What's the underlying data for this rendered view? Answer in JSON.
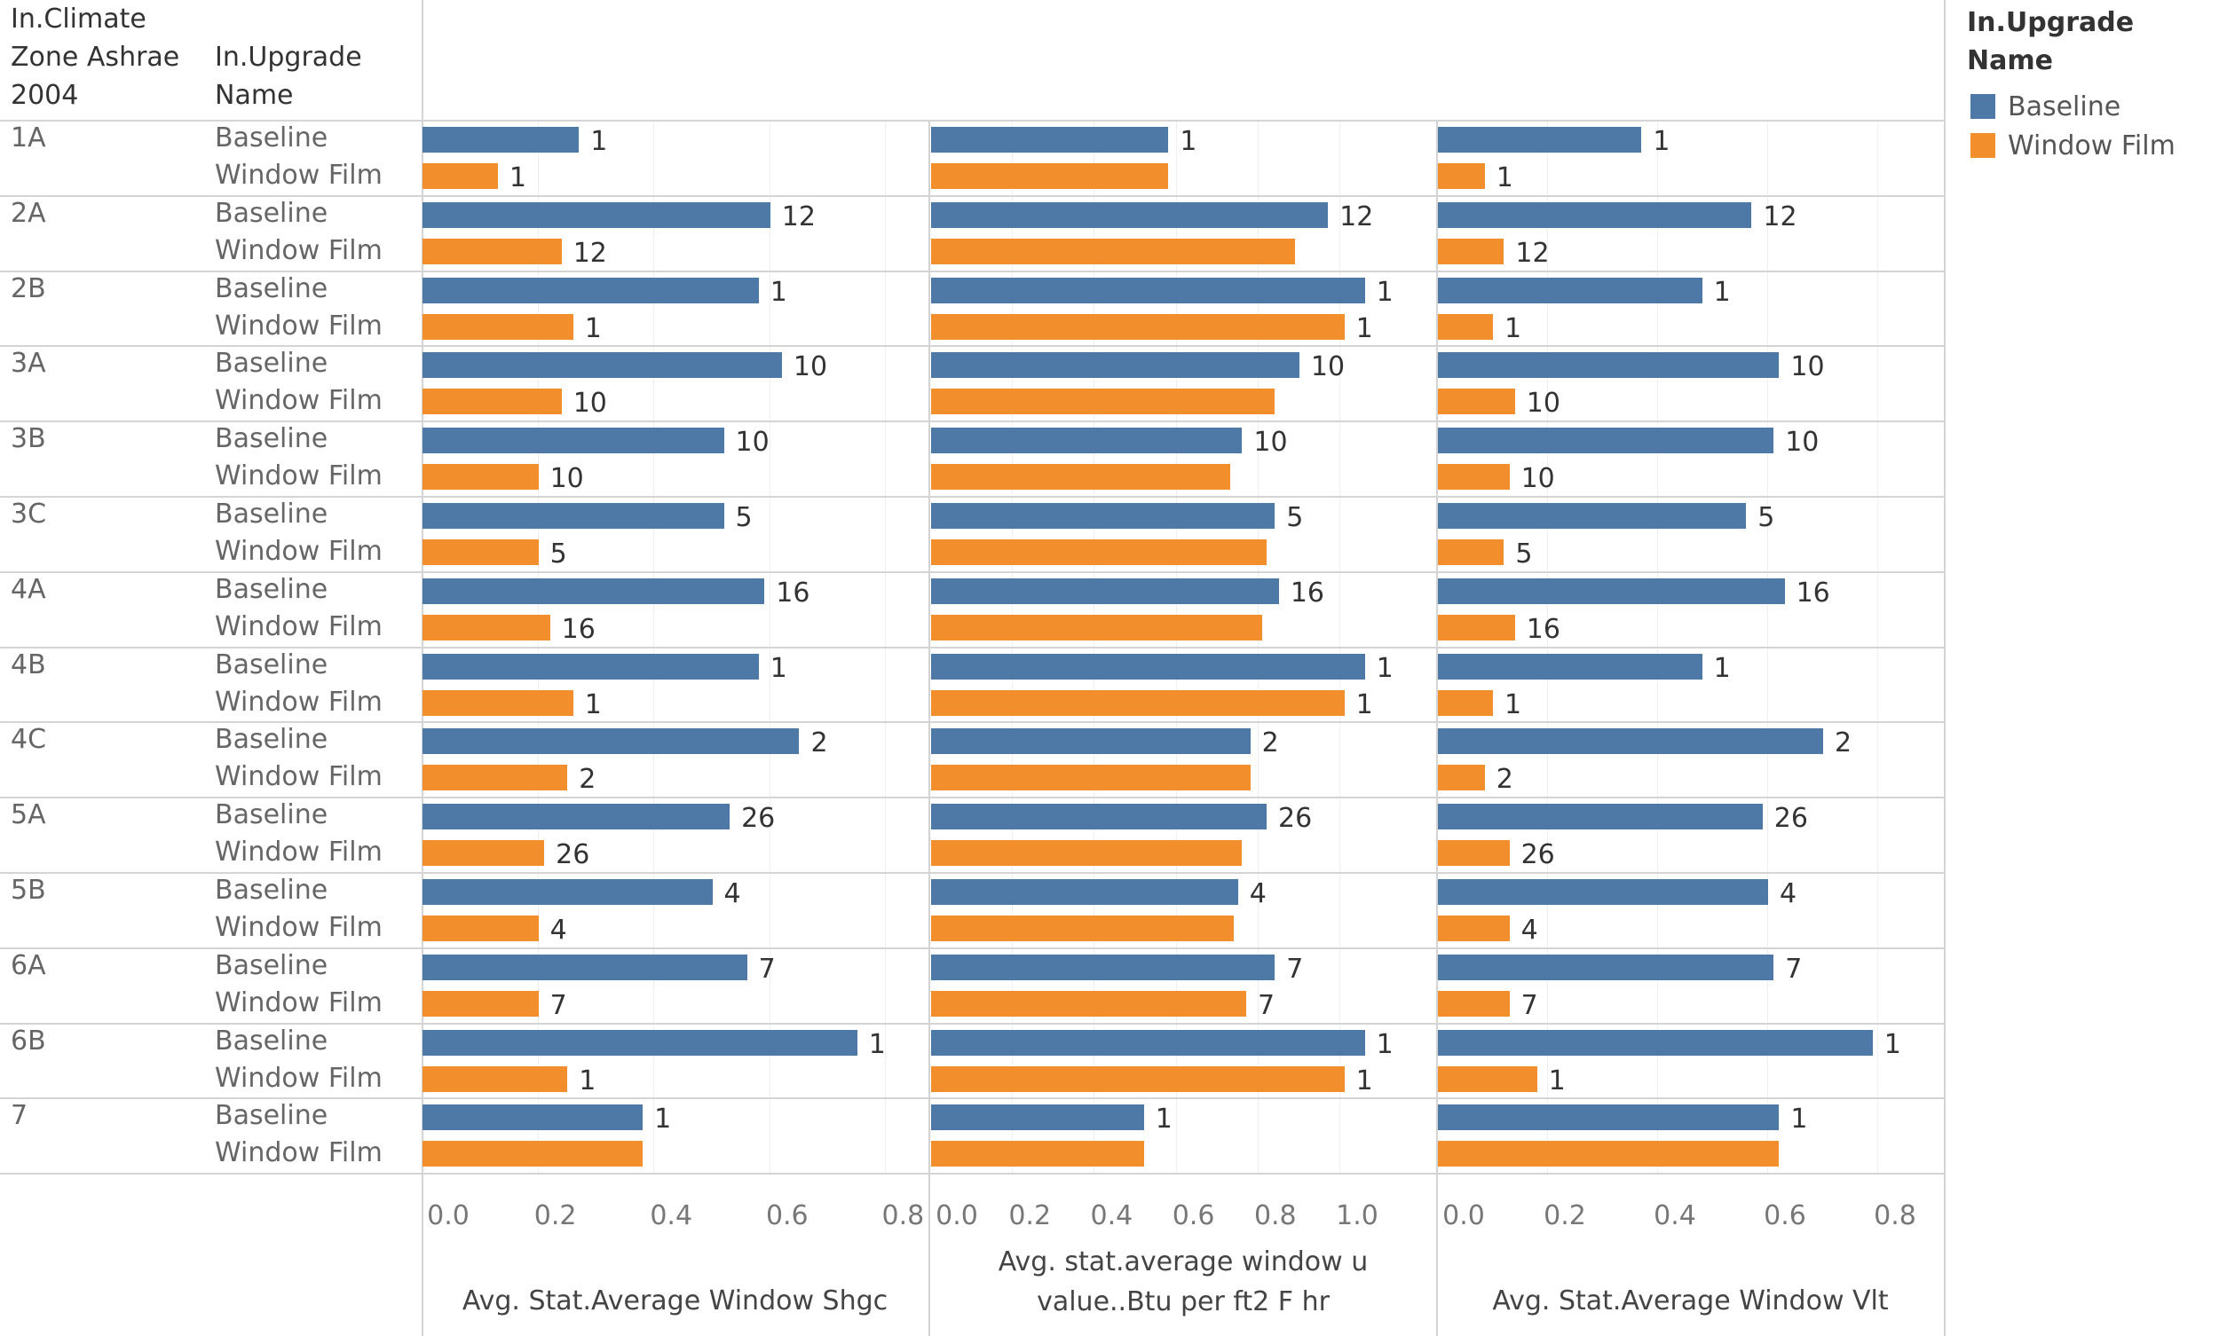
{
  "header": {
    "col1": "In.Climate Zone Ashrae 2004",
    "col2": "In.Upgrade Name"
  },
  "legend": {
    "title": "In.Upgrade Name",
    "items": [
      {
        "label": "Baseline",
        "color": "#4e79a7"
      },
      {
        "label": "Window Film",
        "color": "#f28e2b"
      }
    ]
  },
  "chart_data": {
    "type": "bar",
    "orientation": "horizontal",
    "categories": [
      "1A",
      "2A",
      "2B",
      "3A",
      "3B",
      "3C",
      "4A",
      "4B",
      "4C",
      "5A",
      "5B",
      "6A",
      "6B",
      "7"
    ],
    "series_names": [
      "Baseline",
      "Window Film"
    ],
    "grid": true,
    "legend_position": "top-right",
    "panels": [
      {
        "xlabel": "Avg. Stat.Average Window Shgc",
        "xlim": [
          0,
          0.85
        ],
        "ticks": [
          "0.0",
          "0.2",
          "0.4",
          "0.6",
          "0.8"
        ],
        "series": [
          {
            "name": "Baseline",
            "values": [
              0.27,
              0.6,
              0.58,
              0.62,
              0.52,
              0.52,
              0.59,
              0.58,
              0.65,
              0.53,
              0.5,
              0.56,
              0.75,
              0.38
            ],
            "labels": [
              "1",
              "12",
              "1",
              "10",
              "10",
              "5",
              "16",
              "1",
              "2",
              "26",
              "4",
              "7",
              "1",
              "1"
            ]
          },
          {
            "name": "Window Film",
            "values": [
              0.13,
              0.24,
              0.26,
              0.24,
              0.2,
              0.2,
              0.22,
              0.26,
              0.25,
              0.21,
              0.2,
              0.2,
              0.25,
              0.38
            ],
            "labels": [
              "1",
              "12",
              "1",
              "10",
              "10",
              "5",
              "16",
              "1",
              "2",
              "26",
              "4",
              "7",
              "1",
              null
            ]
          }
        ]
      },
      {
        "xlabel": "Avg. stat.average window u value..Btu per ft2 F hr",
        "xlim": [
          0,
          1.2
        ],
        "ticks": [
          "0.0",
          "0.2",
          "0.4",
          "0.6",
          "0.8",
          "1.0"
        ],
        "series": [
          {
            "name": "Baseline",
            "values": [
              0.58,
              0.97,
              1.06,
              0.9,
              0.76,
              0.84,
              0.85,
              1.06,
              0.78,
              0.82,
              0.75,
              0.84,
              1.06,
              0.52
            ],
            "labels": [
              "1",
              "12",
              "1",
              "10",
              "10",
              "5",
              "16",
              "1",
              "2",
              "26",
              "4",
              "7",
              "1",
              "1"
            ]
          },
          {
            "name": "Window Film",
            "values": [
              0.58,
              0.89,
              1.01,
              0.84,
              0.73,
              0.82,
              0.81,
              1.01,
              0.78,
              0.76,
              0.74,
              0.77,
              1.01,
              0.52
            ],
            "labels": [
              null,
              null,
              "1",
              null,
              null,
              null,
              null,
              "1",
              null,
              null,
              null,
              "7",
              "1",
              null
            ]
          }
        ]
      },
      {
        "xlabel": "Avg. Stat.Average Window Vlt",
        "xlim": [
          0,
          0.9
        ],
        "ticks": [
          "0.0",
          "0.2",
          "0.4",
          "0.6",
          "0.8"
        ],
        "series": [
          {
            "name": "Baseline",
            "values": [
              0.37,
              0.57,
              0.48,
              0.62,
              0.61,
              0.56,
              0.63,
              0.48,
              0.7,
              0.59,
              0.6,
              0.61,
              0.79,
              0.62
            ],
            "labels": [
              "1",
              "12",
              "1",
              "10",
              "10",
              "5",
              "16",
              "1",
              "2",
              "26",
              "4",
              "7",
              "1",
              "1"
            ]
          },
          {
            "name": "Window Film",
            "values": [
              0.085,
              0.12,
              0.1,
              0.14,
              0.13,
              0.12,
              0.14,
              0.1,
              0.085,
              0.13,
              0.13,
              0.13,
              0.18,
              0.62
            ],
            "labels": [
              "1",
              "12",
              "1",
              "10",
              "10",
              "5",
              "16",
              "1",
              "2",
              "26",
              "4",
              "7",
              "1",
              null
            ]
          }
        ]
      }
    ]
  }
}
